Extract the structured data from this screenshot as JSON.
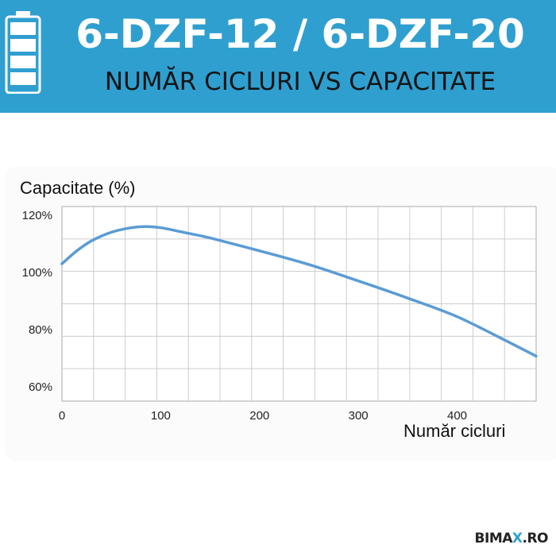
{
  "header": {
    "title": "6-DZF-12 / 6-DZF-20",
    "subtitle": "NUMĂR CICLURI VS CAPACITATE"
  },
  "brand": {
    "before": "BIMA",
    "accent": "X",
    "after": ".RO"
  },
  "colors": {
    "header_bg": "#2f9fd0",
    "line": "#5b9bd5",
    "grid": "#cccccc",
    "axis": "#aaaaaa"
  },
  "chart_data": {
    "type": "line",
    "title": "",
    "xlabel": "Număr cicluri",
    "ylabel": "Capacitate (%)",
    "xlim": [
      0,
      480
    ],
    "ylim": [
      55,
      123
    ],
    "x_ticks": [
      0,
      100,
      200,
      300,
      400
    ],
    "x_tick_labels": [
      "0",
      "100",
      "200",
      "300",
      "400"
    ],
    "y_ticks": [
      120,
      100,
      80,
      60
    ],
    "y_tick_labels": [
      "120%",
      "100%",
      "80%",
      "60%"
    ],
    "grid": true,
    "series": [
      {
        "x": [
          0,
          15,
          30,
          50,
          70,
          85,
          100,
          120,
          150,
          200,
          250,
          300,
          350,
          400,
          450,
          480
        ],
        "y": [
          103,
          107.5,
          111,
          114,
          115.6,
          116,
          115.6,
          114.2,
          112,
          107.5,
          102.7,
          97,
          91,
          84.5,
          76,
          70.7
        ]
      }
    ]
  }
}
